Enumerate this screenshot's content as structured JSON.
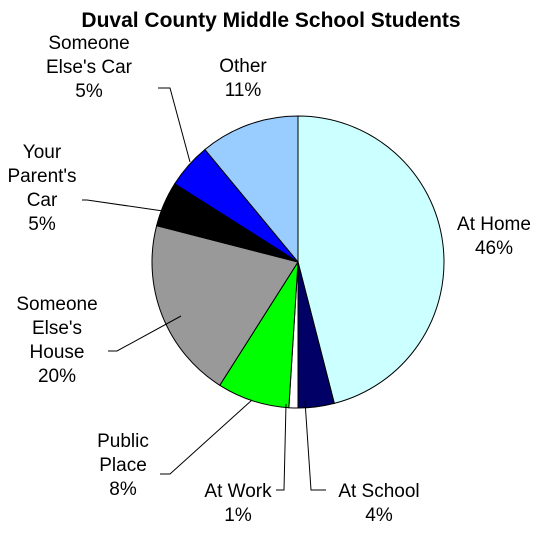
{
  "chart_data": {
    "type": "pie",
    "title": "Duval County Middle School Students",
    "slices": [
      {
        "label_lines": [
          "At Home"
        ],
        "value": 46,
        "value_label": "46%",
        "color": "#ccffff"
      },
      {
        "label_lines": [
          "At School"
        ],
        "value": 4,
        "value_label": "4%",
        "color": "#000066"
      },
      {
        "label_lines": [
          "At Work"
        ],
        "value": 1,
        "value_label": "1%",
        "color": "#ffffff"
      },
      {
        "label_lines": [
          "Public",
          "Place"
        ],
        "value": 8,
        "value_label": "8%",
        "color": "#00ff00"
      },
      {
        "label_lines": [
          "Someone",
          "Else's",
          "House"
        ],
        "value": 20,
        "value_label": "20%",
        "color": "#999999"
      },
      {
        "label_lines": [
          "Your",
          "Parent's",
          "Car"
        ],
        "value": 5,
        "value_label": "5%",
        "color": "#000000"
      },
      {
        "label_lines": [
          "Someone",
          "Else's Car"
        ],
        "value": 5,
        "value_label": "5%",
        "color": "#0000ff"
      },
      {
        "label_lines": [
          "Other"
        ],
        "value": 11,
        "value_label": "11%",
        "color": "#99ccff"
      }
    ]
  }
}
